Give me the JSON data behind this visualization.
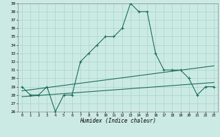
{
  "xlabel": "Humidex (Indice chaleur)",
  "hours": [
    0,
    1,
    2,
    3,
    4,
    5,
    6,
    7,
    8,
    9,
    10,
    11,
    12,
    13,
    14,
    15,
    16,
    17,
    18,
    19,
    20,
    21,
    22,
    23
  ],
  "humidex": [
    29,
    28,
    28,
    29,
    26,
    28,
    28,
    32,
    33,
    34,
    35,
    35,
    36,
    39,
    38,
    38,
    33,
    31,
    31,
    31,
    30,
    28,
    29,
    29
  ],
  "line_color": "#1a6b5a",
  "bg_color": "#cceae4",
  "grid_color": "#a8d4cc",
  "ylim": [
    26,
    39
  ],
  "xlim": [
    -0.5,
    23.5
  ],
  "yticks": [
    26,
    27,
    28,
    29,
    30,
    31,
    32,
    33,
    34,
    35,
    36,
    37,
    38,
    39
  ],
  "xticks": [
    0,
    1,
    2,
    3,
    4,
    5,
    6,
    7,
    8,
    9,
    10,
    11,
    12,
    13,
    14,
    15,
    16,
    17,
    18,
    19,
    20,
    21,
    22,
    23
  ],
  "trend1_x": [
    0,
    23
  ],
  "trend1_y": [
    28.5,
    31.5
  ],
  "trend2_x": [
    0,
    23
  ],
  "trend2_y": [
    27.8,
    29.5
  ]
}
